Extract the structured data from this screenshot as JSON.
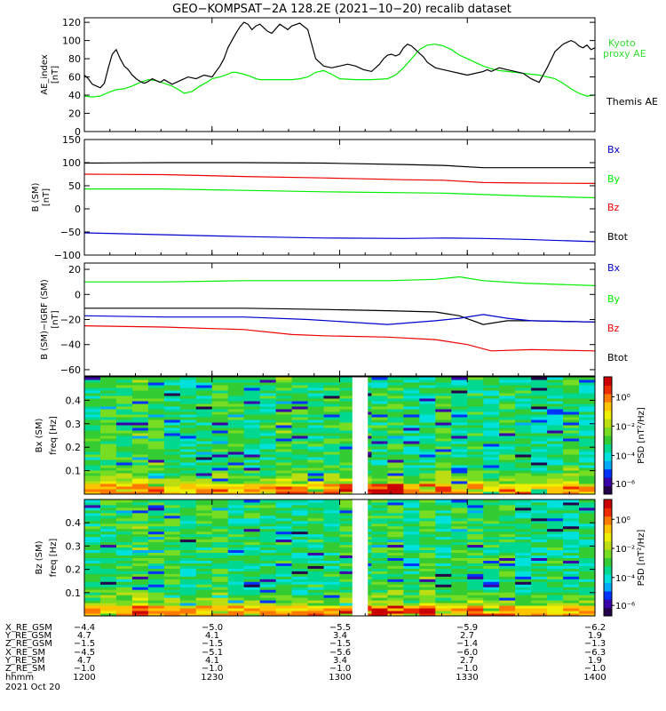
{
  "title": "GEO−KOMPSAT−2A 128.2E (2021−10−20) recalib dataset",
  "colors": {
    "black": "#000000",
    "green": "#00ee00",
    "red": "#ee0000",
    "blue": "#0000cc",
    "kyoto_green": "#33dd33"
  },
  "chart_data": [
    {
      "type": "line",
      "panel": "ae_index",
      "ylabel": "AE_index [nT]",
      "ylim": [
        0,
        125
      ],
      "yticks": [
        "0",
        "20",
        "40",
        "60",
        "80",
        "100",
        "120"
      ],
      "xlim": [
        "1200",
        "1400"
      ],
      "legend": [
        "Kyoto proxy AE",
        "Themis AE"
      ],
      "series": [
        {
          "name": "Kyoto proxy AE",
          "color": "green",
          "x": [
            0,
            10,
            20,
            30,
            40,
            50,
            60,
            70,
            80,
            90,
            100,
            110,
            120,
            125,
            135,
            145,
            155,
            160,
            170,
            180,
            185,
            190,
            200,
            210,
            215,
            220,
            230,
            240,
            250,
            260,
            270,
            280,
            290,
            300,
            310,
            320,
            340,
            360,
            380,
            390,
            400,
            410,
            420,
            430,
            440,
            450,
            460,
            470,
            480,
            490,
            500,
            510,
            520,
            530,
            540,
            550,
            560,
            570,
            580,
            590,
            600,
            610,
            620,
            630,
            640
          ],
          "y": [
            39,
            38,
            39,
            43,
            46,
            47,
            50,
            54,
            57,
            56,
            53,
            50,
            45,
            42,
            44,
            50,
            55,
            58,
            60,
            63,
            65,
            65,
            63,
            60,
            58,
            57,
            57,
            57,
            57,
            57,
            58,
            60,
            65,
            67,
            63,
            58,
            57,
            57,
            58,
            62,
            70,
            80,
            90,
            95,
            96,
            94,
            90,
            84,
            80,
            76,
            72,
            69,
            67,
            66,
            65,
            64,
            63,
            62,
            60,
            58,
            53,
            47,
            42,
            39,
            40
          ]
        },
        {
          "name": "Themis AE",
          "color": "black",
          "x": [
            0,
            5,
            10,
            15,
            20,
            25,
            30,
            35,
            40,
            45,
            50,
            55,
            60,
            65,
            70,
            75,
            80,
            85,
            90,
            95,
            100,
            110,
            120,
            130,
            140,
            150,
            160,
            170,
            175,
            180,
            185,
            190,
            195,
            200,
            205,
            210,
            215,
            220,
            225,
            230,
            235,
            240,
            245,
            250,
            255,
            260,
            270,
            280,
            290,
            300,
            310,
            320,
            330,
            340,
            350,
            360,
            365,
            370,
            375,
            380,
            385,
            390,
            395,
            400,
            405,
            410,
            415,
            420,
            425,
            430,
            440,
            450,
            460,
            470,
            480,
            490,
            500,
            505,
            510,
            520,
            530,
            540,
            550,
            560,
            570,
            580,
            590,
            600,
            605,
            610,
            615,
            620,
            625,
            630,
            635,
            640
          ],
          "y": [
            62,
            58,
            52,
            50,
            48,
            53,
            70,
            85,
            90,
            80,
            72,
            68,
            62,
            58,
            55,
            53,
            55,
            58,
            56,
            54,
            57,
            52,
            56,
            60,
            58,
            62,
            60,
            72,
            80,
            92,
            100,
            108,
            115,
            120,
            118,
            112,
            116,
            118,
            114,
            110,
            108,
            113,
            118,
            115,
            112,
            116,
            119,
            112,
            80,
            72,
            70,
            72,
            74,
            72,
            68,
            66,
            70,
            74,
            80,
            84,
            85,
            83,
            85,
            92,
            96,
            94,
            90,
            86,
            82,
            76,
            70,
            68,
            66,
            64,
            62,
            64,
            66,
            68,
            66,
            70,
            68,
            66,
            64,
            58,
            54,
            70,
            88,
            96,
            98,
            100,
            98,
            94,
            92,
            95,
            90,
            92
          ]
        }
      ]
    },
    {
      "type": "line",
      "panel": "b_sm",
      "ylabel": "B (SM) [nT]",
      "ylim": [
        -100,
        150
      ],
      "yticks": [
        "−100",
        "−50",
        "0",
        "50",
        "100",
        "150"
      ],
      "legend": [
        "Bx",
        "By",
        "Bz",
        "Btot"
      ],
      "series": [
        {
          "name": "Btot",
          "color": "black",
          "x": [
            0,
            100,
            200,
            300,
            400,
            450,
            500,
            550,
            640
          ],
          "y": [
            99,
            100,
            100,
            99,
            96,
            94,
            89,
            89,
            89
          ]
        },
        {
          "name": "Bz",
          "color": "red",
          "x": [
            0,
            100,
            200,
            300,
            400,
            450,
            500,
            550,
            640
          ],
          "y": [
            75,
            74,
            70,
            67,
            63,
            62,
            57,
            56,
            55
          ]
        },
        {
          "name": "By",
          "color": "green",
          "x": [
            0,
            100,
            200,
            300,
            400,
            450,
            500,
            550,
            640
          ],
          "y": [
            43,
            43,
            40,
            37,
            35,
            34,
            31,
            28,
            24
          ]
        },
        {
          "name": "Bx",
          "color": "blue",
          "x": [
            0,
            100,
            200,
            300,
            400,
            450,
            500,
            550,
            640
          ],
          "y": [
            -52,
            -56,
            -60,
            -63,
            -64,
            -63,
            -64,
            -66,
            -71
          ]
        }
      ]
    },
    {
      "type": "line",
      "panel": "b_sm_igrf",
      "ylabel": "B (SM)−IGRF (SM) [nT]",
      "ylim": [
        -65,
        25
      ],
      "yticks": [
        "−60",
        "−40",
        "−20",
        "0",
        "20"
      ],
      "legend": [
        "Bx",
        "By",
        "Bz",
        "Btot"
      ],
      "series": [
        {
          "name": "By",
          "color": "green",
          "x": [
            0,
            100,
            200,
            300,
            380,
            440,
            470,
            500,
            550,
            640
          ],
          "y": [
            10,
            10,
            11,
            11,
            11,
            12,
            14,
            11,
            9,
            7
          ]
        },
        {
          "name": "Btot",
          "color": "black",
          "x": [
            0,
            100,
            200,
            300,
            380,
            440,
            470,
            500,
            530,
            560,
            640
          ],
          "y": [
            -11,
            -11,
            -11,
            -12,
            -13,
            -14,
            -17,
            -24,
            -21,
            -21,
            -22
          ]
        },
        {
          "name": "Bx",
          "color": "blue",
          "x": [
            0,
            100,
            200,
            280,
            380,
            440,
            470,
            500,
            530,
            560,
            640
          ],
          "y": [
            -17,
            -18,
            -18,
            -20,
            -24,
            -21,
            -19,
            -16,
            -19,
            -21,
            -22
          ]
        },
        {
          "name": "Bz",
          "color": "red",
          "x": [
            0,
            100,
            200,
            260,
            300,
            380,
            440,
            480,
            510,
            560,
            640
          ],
          "y": [
            -25,
            -26,
            -28,
            -32,
            -33,
            -34,
            -36,
            -40,
            -45,
            -44,
            -45
          ]
        }
      ]
    },
    {
      "type": "heatmap",
      "panel": "bx_spectrogram",
      "ylabel": "Bx (SM) freq [Hz]",
      "ylim": [
        0,
        0.5
      ],
      "yticks": [
        "0.1",
        "0.2",
        "0.3",
        "0.4"
      ],
      "colorbar_label": "PSD [nT²/Hz]",
      "colorbar_ticks": [
        "10⁰",
        "10⁻²",
        "10⁻⁴",
        "10⁻⁶"
      ],
      "data_gap": [
        "1305",
        "1311"
      ]
    },
    {
      "type": "heatmap",
      "panel": "bz_spectrogram",
      "ylabel": "Bz (SM) freq [Hz]",
      "ylim": [
        0,
        0.5
      ],
      "yticks": [
        "0.1",
        "0.2",
        "0.3",
        "0.4"
      ],
      "colorbar_label": "PSD [nT²/Hz]",
      "colorbar_ticks": [
        "10⁰",
        "10⁻²",
        "10⁻⁴",
        "10⁻⁶"
      ],
      "data_gap": [
        "1305",
        "1311"
      ]
    }
  ],
  "ephemeris": {
    "row_labels": [
      "X_RE_GSM",
      "Y_RE_GSM",
      "Z_RE_GSM",
      "X_RE_SM",
      "Y_RE_SM",
      "Z_RE_SM",
      "hhmm"
    ],
    "columns": [
      [
        "−4.4",
        "4.7",
        "−1.5",
        "−4.5",
        "4.7",
        "−1.0",
        "1200"
      ],
      [
        "−5.0",
        "4.1",
        "−1.5",
        "−5.1",
        "4.1",
        "−1.0",
        "1230"
      ],
      [
        "−5.5",
        "3.4",
        "−1.5",
        "−5.6",
        "3.4",
        "−1.0",
        "1300"
      ],
      [
        "−5.9",
        "2.7",
        "−1.4",
        "−6.0",
        "2.7",
        "−1.0",
        "1330"
      ],
      [
        "−6.2",
        "1.9",
        "−1.3",
        "−6.3",
        "1.9",
        "−1.0",
        "1400"
      ]
    ],
    "date": "2021 Oct 20"
  }
}
